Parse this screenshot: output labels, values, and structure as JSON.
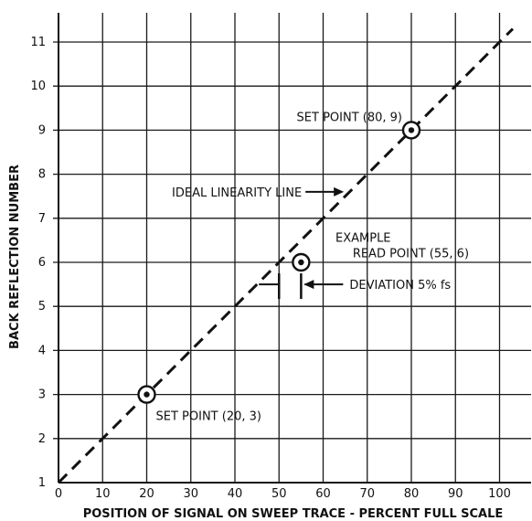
{
  "chart_data": {
    "type": "line",
    "xlabel": "POSITION OF SIGNAL ON SWEEP TRACE - PERCENT FULL SCALE",
    "ylabel": "BACK REFLECTION NUMBER",
    "xlim": [
      0,
      106
    ],
    "ylim": [
      1,
      11.8
    ],
    "x_ticks": [
      0,
      10,
      20,
      30,
      40,
      50,
      60,
      70,
      80,
      90,
      100
    ],
    "y_ticks": [
      1,
      2,
      3,
      4,
      5,
      6,
      7,
      8,
      9,
      10,
      11
    ],
    "grid": true,
    "series": [
      {
        "name": "IDEAL LINEARITY LINE",
        "style": "dashed",
        "x": [
          0,
          100,
          103
        ],
        "y": [
          1,
          11,
          11.3
        ]
      }
    ],
    "points": [
      {
        "label": "SET POINT (20, 3)",
        "x": 20,
        "y": 3,
        "marker": "circle-dot"
      },
      {
        "label": "SET POINT (80, 9)",
        "x": 80,
        "y": 9,
        "marker": "circle-dot"
      },
      {
        "label": "READ POINT (55, 6)",
        "x": 55,
        "y": 6,
        "marker": "circle-dot"
      }
    ],
    "annotations": {
      "ideal_line": "IDEAL LINEARITY LINE",
      "example": "EXAMPLE",
      "read_point": "READ POINT (55, 6)",
      "deviation": "DEVIATION 5% fs",
      "deviation_range_x": [
        50,
        55
      ],
      "deviation_y": 5.5
    }
  }
}
